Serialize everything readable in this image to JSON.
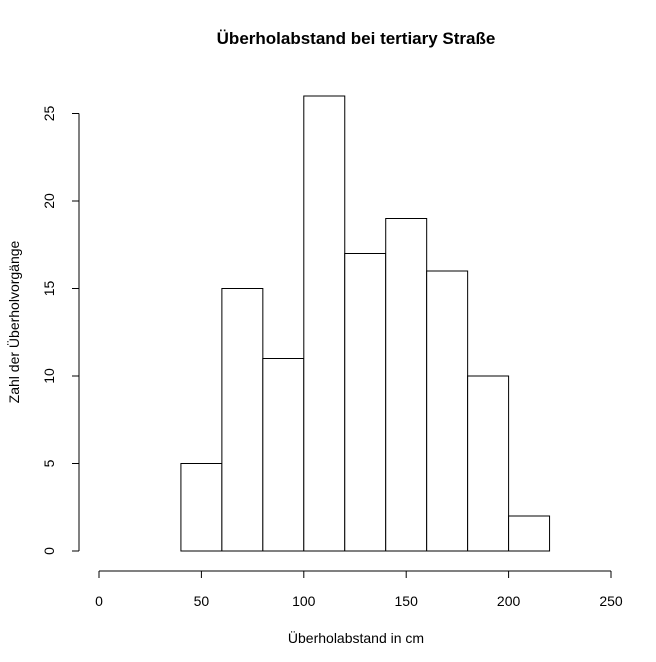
{
  "chart_data": {
    "type": "bar",
    "title": "Überholabstand bei tertiary Straße",
    "xlabel": "Überholabstand in cm",
    "ylabel": "Zahl der Überholvorgänge",
    "bins": [
      {
        "from": 40,
        "to": 60,
        "count": 5
      },
      {
        "from": 60,
        "to": 80,
        "count": 15
      },
      {
        "from": 80,
        "to": 100,
        "count": 11
      },
      {
        "from": 100,
        "to": 120,
        "count": 26
      },
      {
        "from": 120,
        "to": 140,
        "count": 17
      },
      {
        "from": 140,
        "to": 160,
        "count": 19
      },
      {
        "from": 160,
        "to": 180,
        "count": 16
      },
      {
        "from": 180,
        "to": 200,
        "count": 10
      },
      {
        "from": 200,
        "to": 220,
        "count": 2
      }
    ],
    "xlim": [
      0,
      250
    ],
    "ylim": [
      0,
      26
    ],
    "x_ticks": [
      "0",
      "50",
      "100",
      "150",
      "200",
      "250"
    ],
    "y_ticks": [
      "0",
      "5",
      "10",
      "15",
      "20",
      "25"
    ],
    "grid": false,
    "legend": "none"
  }
}
